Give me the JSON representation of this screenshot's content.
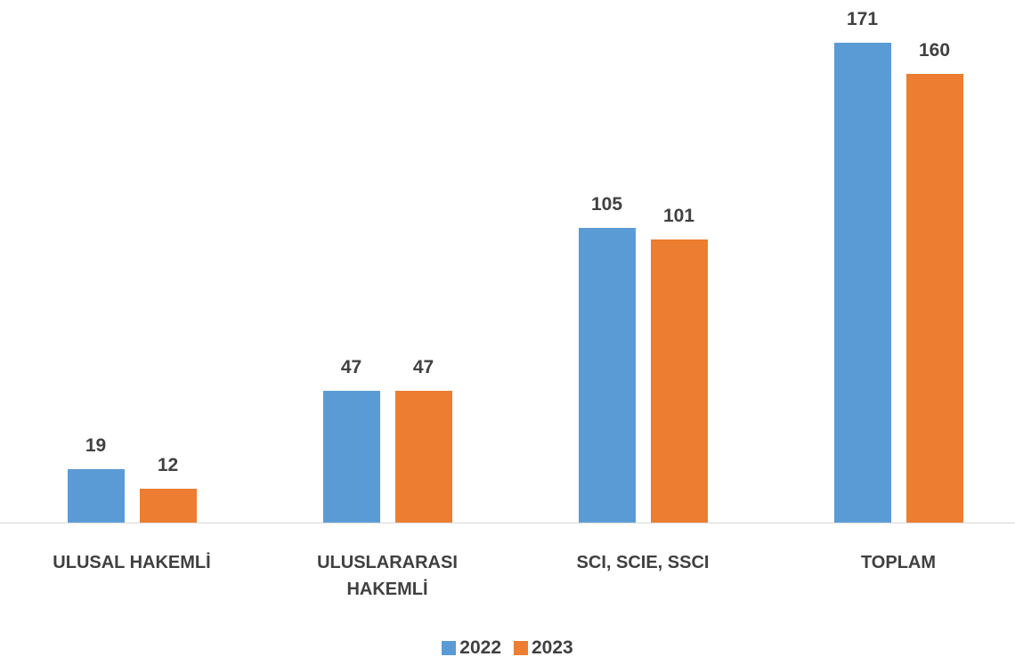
{
  "chart_data": {
    "type": "bar",
    "categories": [
      "ULUSAL HAKEMLİ",
      "ULUSLARARASI HAKEMLİ",
      "SCI, SCIE, SSCI",
      "TOPLAM"
    ],
    "series": [
      {
        "name": "2022",
        "color": "#5b9bd5",
        "values": [
          19,
          47,
          105,
          171
        ]
      },
      {
        "name": "2023",
        "color": "#ed7d31",
        "values": [
          12,
          47,
          101,
          160
        ]
      }
    ],
    "legend": "bottom"
  }
}
